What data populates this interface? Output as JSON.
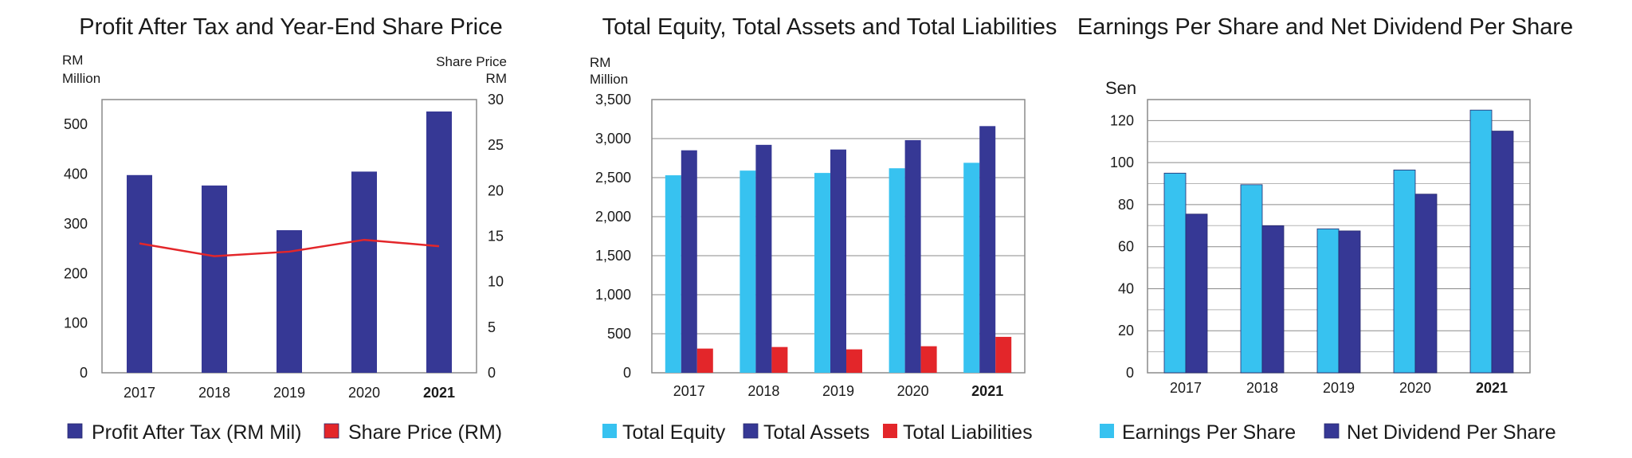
{
  "chart_data": [
    {
      "type": "bar",
      "title": "Profit After Tax and Year-End Share Price",
      "y_unit": [
        "RM",
        "Million"
      ],
      "y2_unit": [
        "Share Price",
        "RM"
      ],
      "categories": [
        "2017",
        "2018",
        "2019",
        "2020",
        "2021"
      ],
      "highlight_category": "2021",
      "ylim": [
        0,
        550
      ],
      "yticks": [
        0,
        100,
        200,
        300,
        400,
        500
      ],
      "y2lim": [
        0,
        30
      ],
      "y2ticks": [
        0,
        5,
        10,
        15,
        20,
        25,
        30
      ],
      "series": [
        {
          "name": "Profit After Tax (RM Mil)",
          "type": "bar",
          "axis": "left",
          "color": "#363895",
          "values": [
            398,
            377,
            287,
            405,
            526
          ]
        },
        {
          "name": "Share Price (RM)",
          "type": "line",
          "axis": "right",
          "color": "#e3262a",
          "values": [
            14.2,
            12.8,
            13.3,
            14.6,
            13.9
          ]
        }
      ],
      "legend_position": "bottom"
    },
    {
      "type": "bar",
      "title": "Total Equity, Total Assets and Total Liabilities",
      "y_unit": [
        "RM",
        "Million"
      ],
      "categories": [
        "2017",
        "2018",
        "2019",
        "2020",
        "2021"
      ],
      "highlight_category": "2021",
      "ylim": [
        0,
        3500
      ],
      "yticks": [
        "0",
        "500",
        "1,000",
        "1,500",
        "2,000",
        "2,500",
        "3,000",
        "3,500"
      ],
      "ytick_values": [
        0,
        500,
        1000,
        1500,
        2000,
        2500,
        3000,
        3500
      ],
      "grid": true,
      "series": [
        {
          "name": "Total Equity",
          "color": "#37c2f0",
          "values": [
            2530,
            2590,
            2560,
            2620,
            2690
          ]
        },
        {
          "name": "Total Assets",
          "color": "#363895",
          "values": [
            2850,
            2920,
            2860,
            2980,
            3160
          ]
        },
        {
          "name": "Total Liabilities",
          "color": "#e3262a",
          "values": [
            310,
            330,
            300,
            340,
            460
          ]
        }
      ],
      "legend_position": "bottom"
    },
    {
      "type": "bar",
      "title": "Earnings Per Share and Net Dividend Per Share",
      "y_unit": [
        "Sen"
      ],
      "categories": [
        "2017",
        "2018",
        "2019",
        "2020",
        "2021"
      ],
      "highlight_category": "2021",
      "ylim": [
        0,
        130
      ],
      "yticks": [
        0,
        20,
        40,
        60,
        80,
        100,
        120
      ],
      "grid": true,
      "series": [
        {
          "name": "Earnings Per Share",
          "color": "#37c2f0",
          "values": [
            95,
            89.5,
            68.5,
            96.5,
            125
          ]
        },
        {
          "name": "Net Dividend Per Share",
          "color": "#363895",
          "values": [
            75.5,
            70,
            67.5,
            85,
            115
          ]
        }
      ],
      "legend_position": "bottom"
    }
  ]
}
